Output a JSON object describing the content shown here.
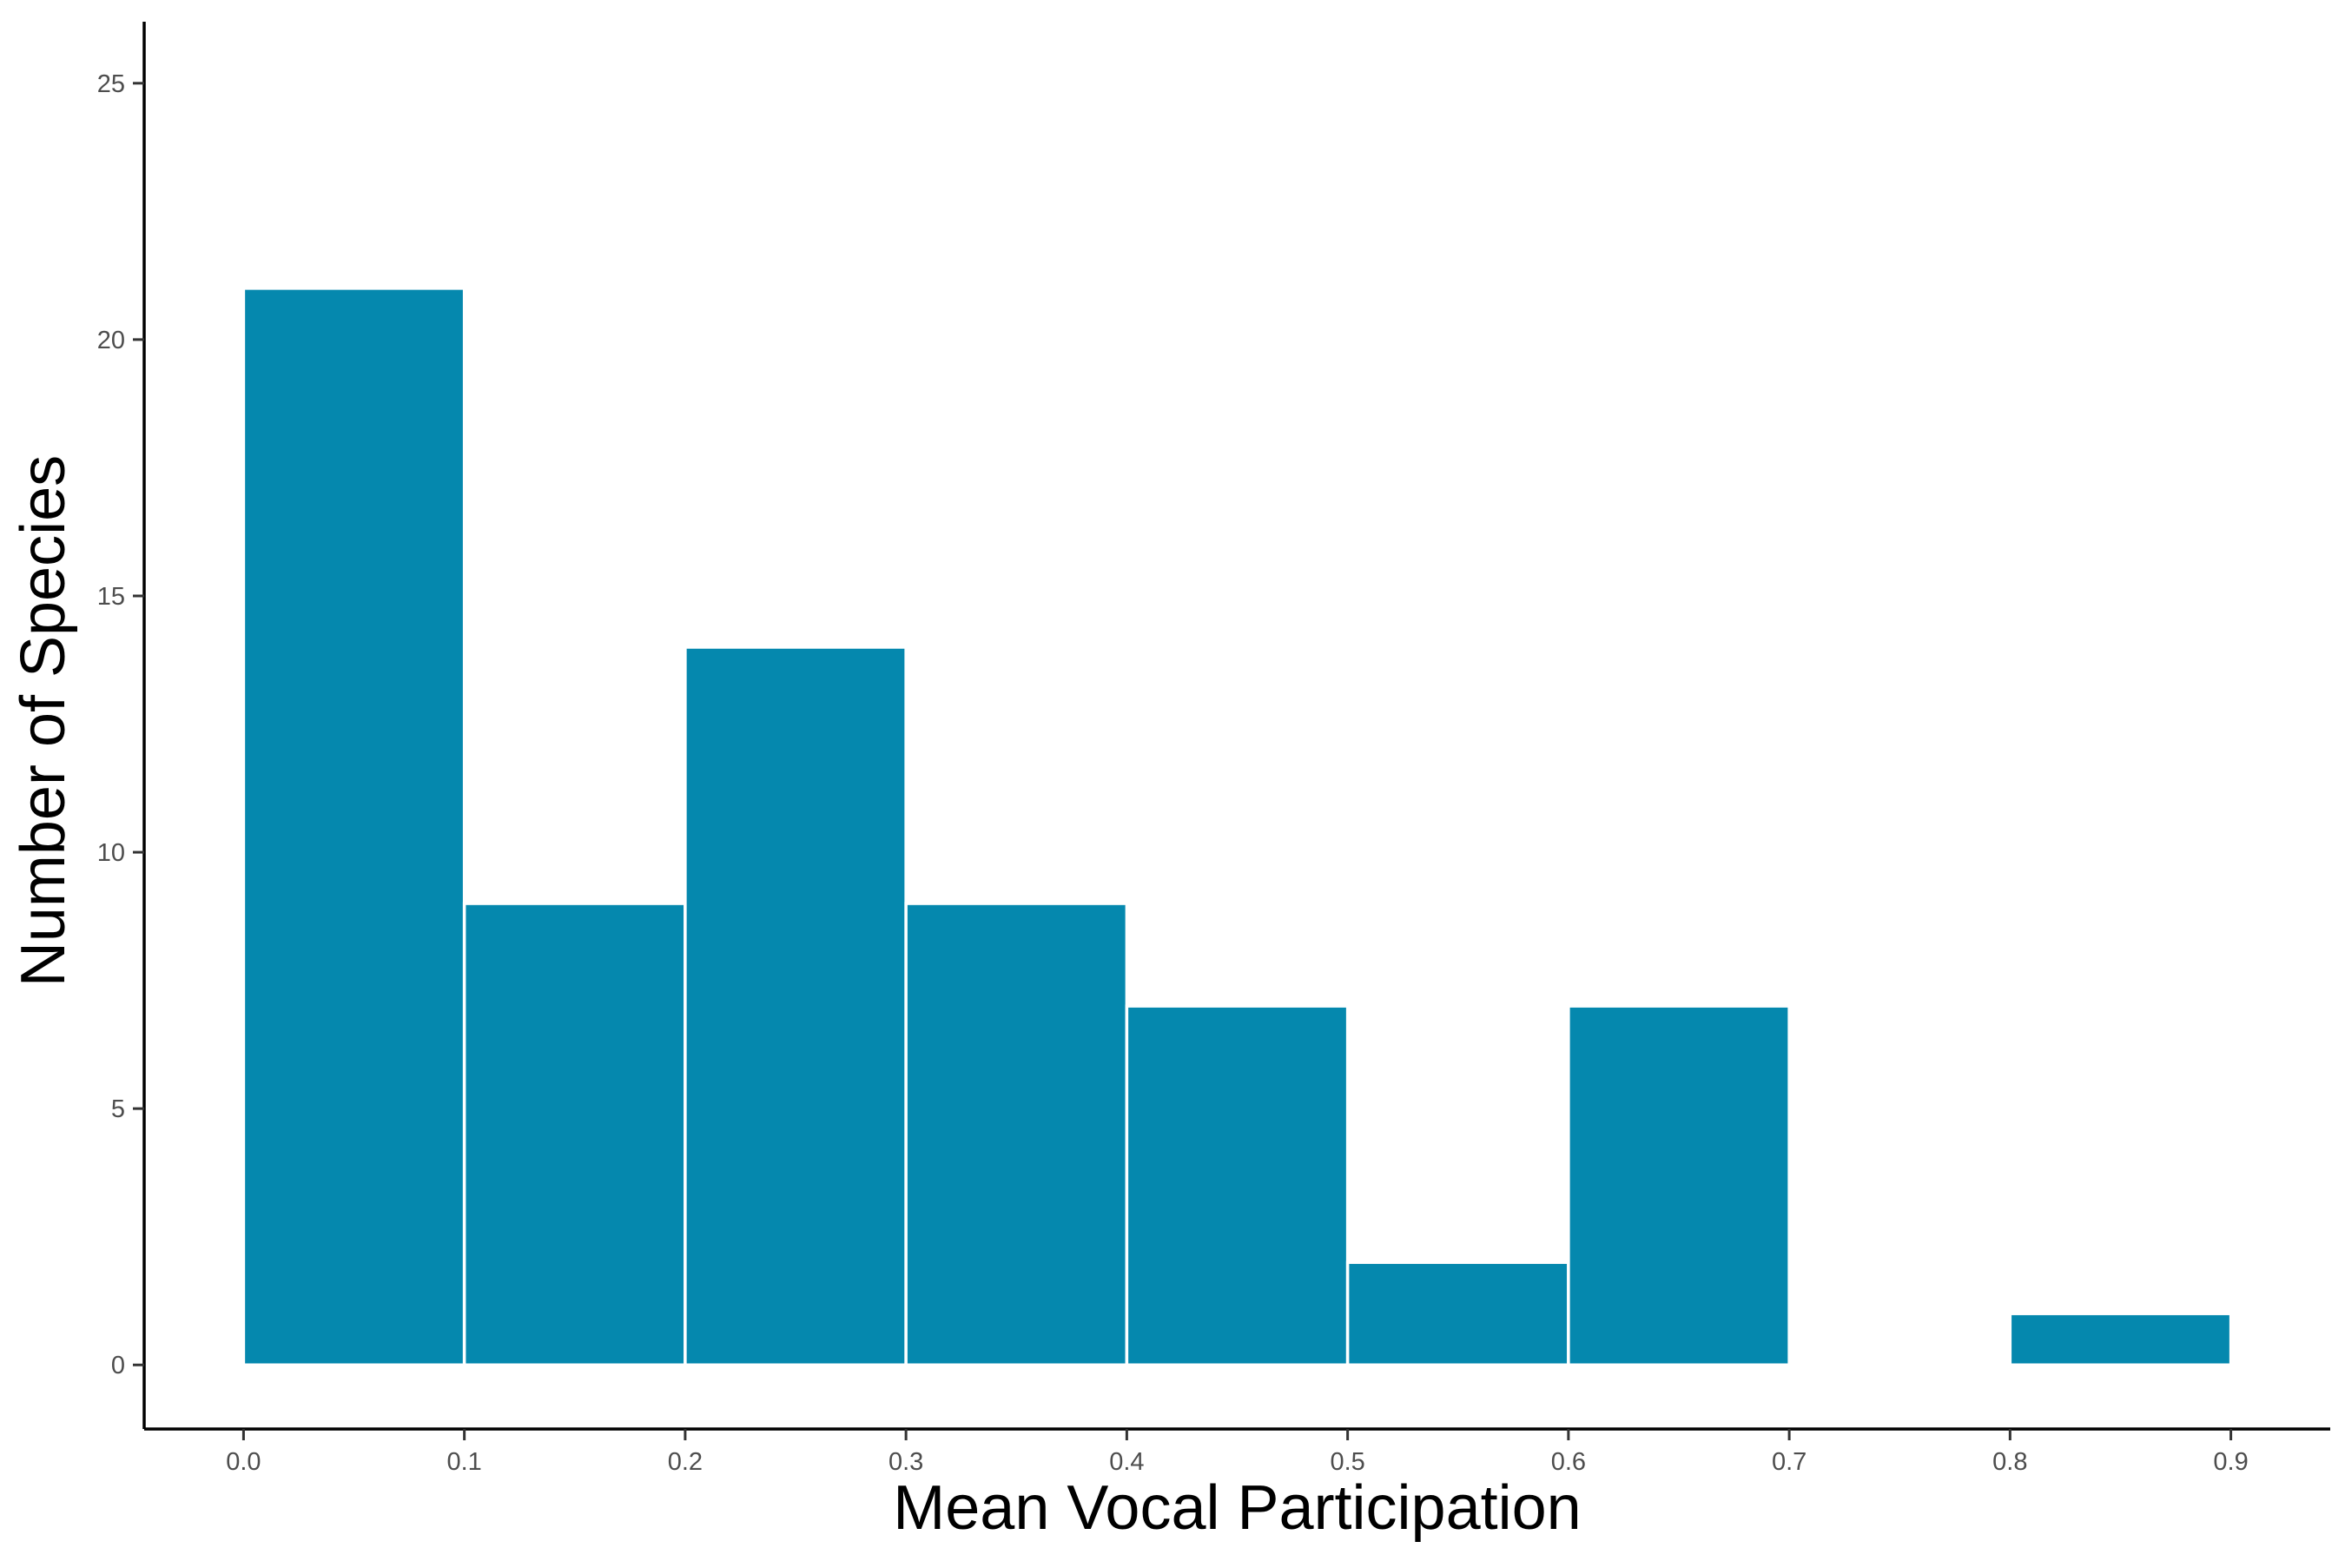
{
  "chart_data": {
    "type": "bar",
    "subtype": "histogram",
    "title": "",
    "xlabel": "Mean Vocal Participation",
    "ylabel": "Number of Species",
    "bins": [
      {
        "x0": 0.0,
        "x1": 0.1,
        "count": 21
      },
      {
        "x0": 0.1,
        "x1": 0.2,
        "count": 9
      },
      {
        "x0": 0.2,
        "x1": 0.3,
        "count": 14
      },
      {
        "x0": 0.3,
        "x1": 0.4,
        "count": 9
      },
      {
        "x0": 0.4,
        "x1": 0.5,
        "count": 7
      },
      {
        "x0": 0.5,
        "x1": 0.6,
        "count": 2
      },
      {
        "x0": 0.6,
        "x1": 0.7,
        "count": 7
      },
      {
        "x0": 0.7,
        "x1": 0.8,
        "count": 0
      },
      {
        "x0": 0.8,
        "x1": 0.9,
        "count": 1
      }
    ],
    "xlim": [
      -0.045,
      0.945
    ],
    "ylim": [
      -1.25,
      26.2
    ],
    "xticks": [
      "0.0",
      "0.1",
      "0.2",
      "0.3",
      "0.4",
      "0.5",
      "0.6",
      "0.7",
      "0.8",
      "0.9"
    ],
    "yticks": [
      "0",
      "5",
      "10",
      "15",
      "20",
      "25"
    ],
    "bar_color": "#0588AE",
    "bar_edge_color": "#ffffff",
    "grid": false,
    "legend": "none"
  }
}
